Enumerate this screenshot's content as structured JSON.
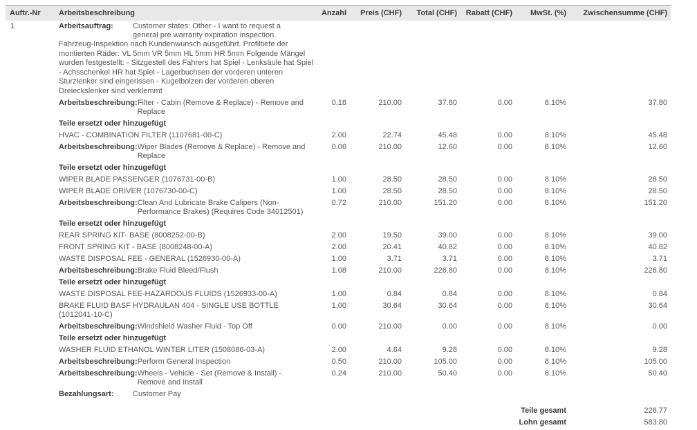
{
  "table": {
    "columns": [
      "Auftr.-Nr",
      "Arbeitsbeschreibung",
      "Anzahl",
      "Preis (CHF)",
      "Total (CHF)",
      "Rabatt (CHF)",
      "MwSt. (%)",
      "Zwischensumme (CHF)"
    ],
    "rows": [
      {
        "type": "workorder",
        "auftr": "1",
        "label": "Arbeitsauftrag:",
        "text": "Customer states: Other - I want to request a general pre warranty expiration inspection.",
        "note": "Fahrzeug-Inspektion nach Kundenwunsch ausgeführt. Profiltiefe der montierten Räder: VL 5mm VR 5mm HL 5mm HR 5mm Folgende Mängel wurden festgestellt: - Sitzgestell des Fahrers hat Spiel - Lenksäule hat Spiel - Achsschenkel HR hat Spiel - Lagerbuchsen der vorderen unteren Sturzlenker sind eingerissen - Kugelbolzen der vorderen oberen Dreieckslenker sind verklemmt"
      },
      {
        "type": "labor",
        "label": "Arbeitsbeschreibung:",
        "text": "Filter - Cabin (Remove & Replace) - Remove and Replace",
        "qty": "0.18",
        "price": "210.00",
        "total": "37.80",
        "discount": "0.00",
        "vat": "8.10%",
        "subtotal": "37.80"
      },
      {
        "type": "section",
        "text": "Teile ersetzt oder hinzugefügt"
      },
      {
        "type": "part",
        "text": "HVAC - COMBINATION FILTER (1107681-00-C)",
        "qty": "2.00",
        "price": "22.74",
        "total": "45.48",
        "discount": "0.00",
        "vat": "8.10%",
        "subtotal": "45.48"
      },
      {
        "type": "labor",
        "label": "Arbeitsbeschreibung:",
        "text": "Wiper Blades (Remove & Replace) - Remove and Replace",
        "qty": "0.06",
        "price": "210.00",
        "total": "12.60",
        "discount": "0.00",
        "vat": "8.10%",
        "subtotal": "12.60"
      },
      {
        "type": "section",
        "text": "Teile ersetzt oder hinzugefügt"
      },
      {
        "type": "part",
        "text": "WIPER BLADE PASSENGER (1076731-00-B)",
        "qty": "1.00",
        "price": "28.50",
        "total": "28.50",
        "discount": "0.00",
        "vat": "8.10%",
        "subtotal": "28.50"
      },
      {
        "type": "part",
        "text": "WIPER BLADE DRIVER (1076730-00-C)",
        "qty": "1.00",
        "price": "28.50",
        "total": "28.50",
        "discount": "0.00",
        "vat": "8.10%",
        "subtotal": "28.50"
      },
      {
        "type": "labor",
        "label": "Arbeitsbeschreibung:",
        "text": "Clean And Lubricate Brake Calipers (Non-Performance Brakes) (Requires Code 34012501)",
        "qty": "0.72",
        "price": "210.00",
        "total": "151.20",
        "discount": "0.00",
        "vat": "8.10%",
        "subtotal": "151.20"
      },
      {
        "type": "section",
        "text": "Teile ersetzt oder hinzugefügt"
      },
      {
        "type": "part",
        "text": "REAR SPRING KIT- BASE (8008252-00-B)",
        "qty": "2.00",
        "price": "19.50",
        "total": "39.00",
        "discount": "0.00",
        "vat": "8.10%",
        "subtotal": "39.00"
      },
      {
        "type": "part",
        "text": "FRONT SPRING KIT - BASE (8008248-00-A)",
        "qty": "2.00",
        "price": "20.41",
        "total": "40.82",
        "discount": "0.00",
        "vat": "8.10%",
        "subtotal": "40.82"
      },
      {
        "type": "part",
        "text": "WASTE DISPOSAL FEE - GENERAL (1526930-00-A)",
        "qty": "1.00",
        "price": "3.71",
        "total": "3.71",
        "discount": "0.00",
        "vat": "8.10%",
        "subtotal": "3.71"
      },
      {
        "type": "labor",
        "label": "Arbeitsbeschreibung:",
        "text": "Brake Fluid Bleed/Flush",
        "qty": "1.08",
        "price": "210.00",
        "total": "226.80",
        "discount": "0.00",
        "vat": "8.10%",
        "subtotal": "226.80"
      },
      {
        "type": "section",
        "text": "Teile ersetzt oder hinzugefügt"
      },
      {
        "type": "part",
        "text": "WASTE DISPOSAL FEE-HAZARDOUS FLUIDS (1526933-00-A)",
        "qty": "1.00",
        "price": "0.84",
        "total": "0.84",
        "discount": "0.00",
        "vat": "8.10%",
        "subtotal": "0.84"
      },
      {
        "type": "part",
        "text": "BRAKE FLUID BASF HYDRAULAN 404 - SINGLE USE BOTTLE (1012041-10-C)",
        "qty": "1.00",
        "price": "30.64",
        "total": "30.64",
        "discount": "0.00",
        "vat": "8.10%",
        "subtotal": "30.64"
      },
      {
        "type": "labor",
        "label": "Arbeitsbeschreibung:",
        "text": "Windshield Washer Fluid - Top Off",
        "qty": "0.00",
        "price": "210.00",
        "total": "0.00",
        "discount": "0.00",
        "vat": "8.10%",
        "subtotal": "0.00"
      },
      {
        "type": "section",
        "text": "Teile ersetzt oder hinzugefügt"
      },
      {
        "type": "part",
        "text": "WASHER FLUID ETHANOL WINTER LITER (1508086-03-A)",
        "qty": "2.00",
        "price": "4.64",
        "total": "9.28",
        "discount": "0.00",
        "vat": "8.10%",
        "subtotal": "9.28"
      },
      {
        "type": "labor",
        "label": "Arbeitsbeschreibung:",
        "text": "Perform General Inspection",
        "qty": "0.50",
        "price": "210.00",
        "total": "105.00",
        "discount": "0.00",
        "vat": "8.10%",
        "subtotal": "105.00"
      },
      {
        "type": "labor",
        "label": "Arbeitsbeschreibung:",
        "text": "Wheels - Vehicle - Set (Remove & Install) - Remove and Install",
        "qty": "0.24",
        "price": "210.00",
        "total": "50.40",
        "discount": "0.00",
        "vat": "8.10%",
        "subtotal": "50.40"
      },
      {
        "type": "payment",
        "label": "Bezahlungsart:",
        "text": "Customer Pay"
      }
    ],
    "totals": [
      {
        "label": "Teile gesamt",
        "value": "226.77"
      },
      {
        "label": "Lohn gesamt",
        "value": "583.80"
      }
    ]
  },
  "colors": {
    "header_bg": "#e8e8e8",
    "text_dark": "#3b3b3b",
    "text_gray": "#575757",
    "top_border": "#979797",
    "bottom_border": "#4e4e4e"
  }
}
